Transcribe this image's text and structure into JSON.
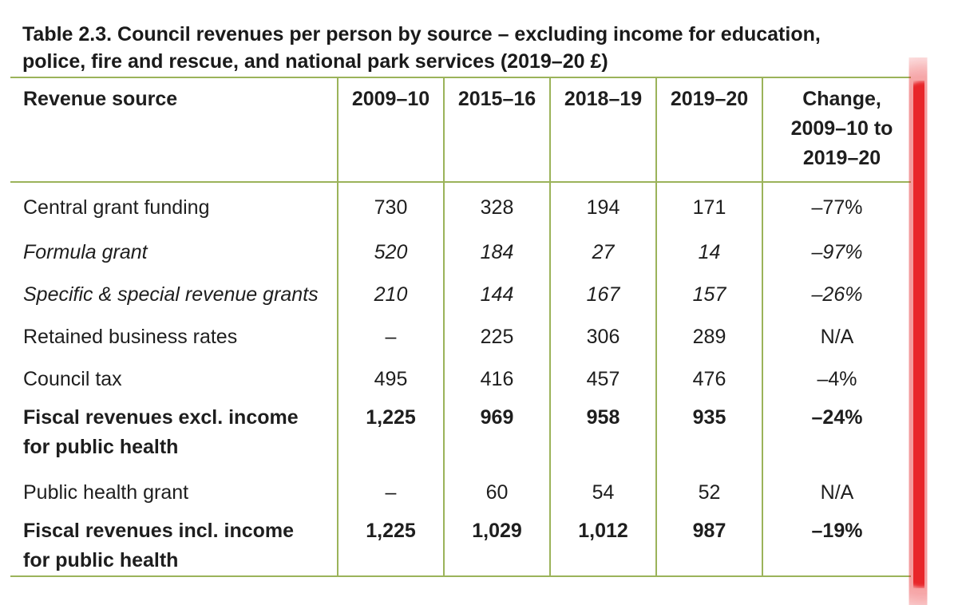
{
  "table": {
    "title_line1": "Table 2.3. Council revenues per person by source – excluding income for education,",
    "title_line2": "police, fire and rescue, and national park services (2019–20 £)",
    "headers": {
      "source": "Revenue source",
      "y2009": "2009–10",
      "y2015": "2015–16",
      "y2018": "2018–19",
      "y2019": "2019–20",
      "change_line1": "Change,",
      "change_line2": "2009–10 to",
      "change_line3": "2019–20"
    },
    "rows": [
      {
        "label": "Central grant funding",
        "v2009": "730",
        "v2015": "328",
        "v2018": "194",
        "v2019": "171",
        "change": "–77%"
      },
      {
        "label": "Formula grant",
        "v2009": "520",
        "v2015": "184",
        "v2018": "27",
        "v2019": "14",
        "change": "–97%"
      },
      {
        "label": "Specific & special revenue grants",
        "v2009": "210",
        "v2015": "144",
        "v2018": "167",
        "v2019": "157",
        "change": "–26%"
      },
      {
        "label": "Retained business rates",
        "v2009": "–",
        "v2015": "225",
        "v2018": "306",
        "v2019": "289",
        "change": "N/A"
      },
      {
        "label": "Council tax",
        "v2009": "495",
        "v2015": "416",
        "v2018": "457",
        "v2019": "476",
        "change": "–4%"
      },
      {
        "label_line1": "Fiscal revenues excl. income",
        "label_line2": "for public health",
        "v2009": "1,225",
        "v2015": "969",
        "v2018": "958",
        "v2019": "935",
        "change": "–24%"
      },
      {
        "label": "Public health grant",
        "v2009": "–",
        "v2015": "60",
        "v2018": "54",
        "v2019": "52",
        "change": "N/A"
      },
      {
        "label_line1": "Fiscal revenues incl. income",
        "label_line2": "for public health",
        "v2009": "1,225",
        "v2015": "1,029",
        "v2018": "1,012",
        "v2019": "987",
        "change": "–19%"
      }
    ]
  },
  "colors": {
    "rule": "#9bb35a",
    "highlight": "#e8262b"
  }
}
